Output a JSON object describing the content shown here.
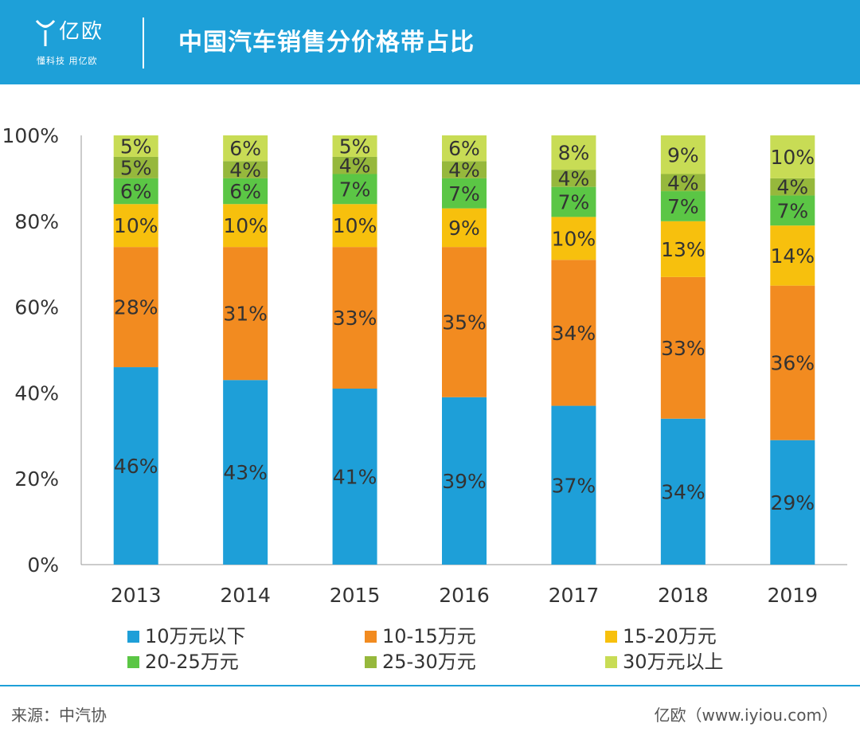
{
  "header": {
    "brand": "亿欧",
    "slogan": "懂科技 用亿欧",
    "title": "中国汽车销售分价格带占比"
  },
  "chart_data": {
    "type": "bar",
    "stacked": true,
    "title": "中国汽车销售分价格带占比",
    "categories": [
      "2013",
      "2014",
      "2015",
      "2016",
      "2017",
      "2018",
      "2019"
    ],
    "ylim": [
      0,
      100
    ],
    "yticks": [
      "0%",
      "20%",
      "40%",
      "60%",
      "80%",
      "100%"
    ],
    "grid": false,
    "legend_position": "bottom",
    "series": [
      {
        "name": "10万元以下",
        "color": "#1e9fd8",
        "values": [
          46,
          43,
          41,
          39,
          37,
          34,
          29
        ]
      },
      {
        "name": "10-15万元",
        "color": "#f28b20",
        "values": [
          28,
          31,
          33,
          35,
          34,
          33,
          36
        ]
      },
      {
        "name": "15-20万元",
        "color": "#f7c00d",
        "values": [
          10,
          10,
          10,
          9,
          10,
          13,
          14
        ]
      },
      {
        "name": "20-25万元",
        "color": "#5bc645",
        "values": [
          6,
          6,
          7,
          7,
          7,
          7,
          7
        ]
      },
      {
        "name": "25-30万元",
        "color": "#96b83c",
        "values": [
          5,
          4,
          4,
          4,
          4,
          4,
          4
        ]
      },
      {
        "name": "30万元以上",
        "color": "#c8dc55",
        "values": [
          5,
          6,
          5,
          6,
          8,
          9,
          10
        ]
      }
    ]
  },
  "footer": {
    "source": "来源：中汽协",
    "credit": "亿欧（www.iyiou.com）"
  }
}
